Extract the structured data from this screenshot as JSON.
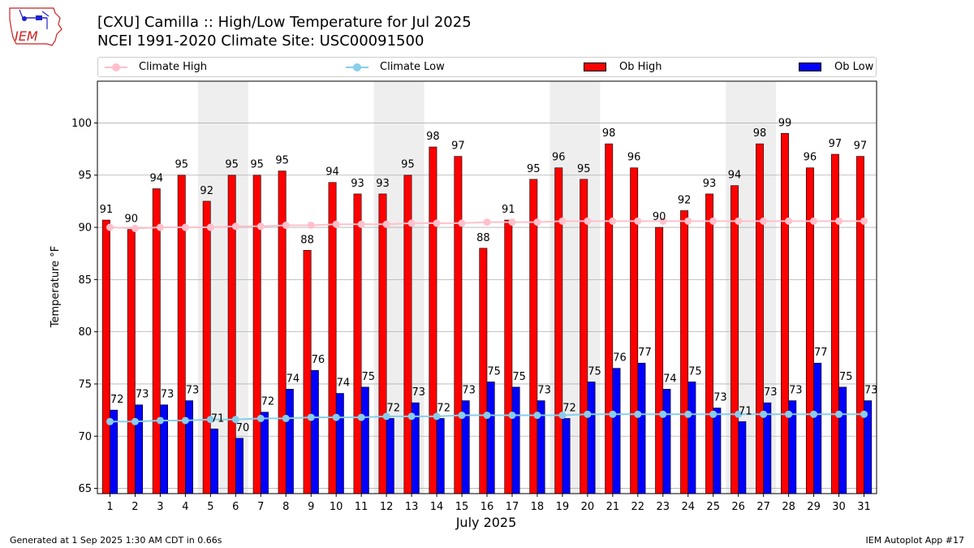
{
  "header": {
    "title_line1": "[CXU] Camilla :: High/Low Temperature for Jul 2025",
    "title_line2": "NCEI 1991-2020 Climate Site: USC00091500"
  },
  "logo": {
    "text": "IEM"
  },
  "legend": {
    "climate_high": "Climate High",
    "climate_low": "Climate Low",
    "ob_high": "Ob High",
    "ob_low": "Ob Low"
  },
  "footer": {
    "generated": "Generated at 1 Sep 2025 1:30 AM CDT in 0.66s",
    "app": "IEM Autoplot App #17"
  },
  "colors": {
    "ob_high": "#ff0000",
    "ob_low": "#0000ff",
    "climate_high": "#ffc0cb",
    "climate_low": "#87ceeb",
    "weekend_shade": "#eeeeee",
    "grid": "#b0b0b0"
  },
  "chart_data": {
    "type": "bar",
    "xlabel": "July 2025",
    "ylabel": "Temperature °F",
    "ylim": [
      64.5,
      104
    ],
    "yticks": [
      65,
      70,
      75,
      80,
      85,
      90,
      95,
      100
    ],
    "grid": "horizontal",
    "legend_position": "top",
    "categories": [
      "1",
      "2",
      "3",
      "4",
      "5",
      "6",
      "7",
      "8",
      "9",
      "10",
      "11",
      "12",
      "13",
      "14",
      "15",
      "16",
      "17",
      "18",
      "19",
      "20",
      "21",
      "22",
      "23",
      "24",
      "25",
      "26",
      "27",
      "28",
      "29",
      "30",
      "31"
    ],
    "shaded_days": [
      [
        5,
        6
      ],
      [
        12,
        13
      ],
      [
        19,
        20
      ],
      [
        26,
        27
      ]
    ],
    "series": [
      {
        "name": "Ob High",
        "kind": "bar",
        "values": [
          91,
          90,
          94,
          95,
          92,
          95,
          95,
          95,
          88,
          94,
          93,
          93,
          95,
          98,
          97,
          88,
          91,
          95,
          96,
          95,
          98,
          96,
          90,
          92,
          93,
          94,
          98,
          99,
          96,
          97,
          97
        ],
        "actual": [
          90.7,
          89.8,
          93.7,
          95.0,
          92.5,
          95.0,
          95.0,
          95.4,
          87.8,
          94.3,
          93.2,
          93.2,
          95.0,
          97.7,
          96.8,
          88.0,
          90.7,
          94.6,
          95.7,
          94.6,
          98.0,
          95.7,
          90.0,
          91.6,
          93.2,
          94.0,
          98.0,
          99.0,
          95.7,
          97.0,
          96.8
        ]
      },
      {
        "name": "Ob Low",
        "kind": "bar",
        "values": [
          72,
          73,
          73,
          73,
          71,
          70,
          72,
          74,
          76,
          74,
          75,
          72,
          73,
          72,
          73,
          75,
          75,
          73,
          72,
          75,
          76,
          77,
          74,
          75,
          73,
          71,
          73,
          73,
          77,
          75,
          73
        ],
        "actual": [
          72.5,
          73.0,
          73.0,
          73.4,
          70.7,
          69.8,
          72.3,
          74.5,
          76.3,
          74.1,
          74.7,
          71.7,
          73.2,
          71.7,
          73.4,
          75.2,
          74.7,
          73.4,
          71.7,
          75.2,
          76.5,
          77.0,
          74.5,
          75.2,
          72.7,
          71.4,
          73.2,
          73.4,
          77.0,
          74.7,
          73.4
        ]
      },
      {
        "name": "Climate High",
        "kind": "line",
        "values": [
          90.0,
          89.9,
          90.0,
          90.0,
          90.0,
          90.1,
          90.1,
          90.2,
          90.2,
          90.3,
          90.3,
          90.3,
          90.4,
          90.4,
          90.4,
          90.5,
          90.5,
          90.5,
          90.6,
          90.6,
          90.6,
          90.6,
          90.6,
          90.6,
          90.6,
          90.6,
          90.6,
          90.6,
          90.6,
          90.6,
          90.6
        ]
      },
      {
        "name": "Climate Low",
        "kind": "line",
        "values": [
          71.4,
          71.4,
          71.5,
          71.5,
          71.6,
          71.6,
          71.7,
          71.7,
          71.8,
          71.8,
          71.8,
          71.9,
          71.9,
          71.9,
          72.0,
          72.0,
          72.0,
          72.0,
          72.0,
          72.1,
          72.1,
          72.1,
          72.1,
          72.1,
          72.1,
          72.1,
          72.1,
          72.1,
          72.1,
          72.1,
          72.1
        ]
      }
    ]
  }
}
